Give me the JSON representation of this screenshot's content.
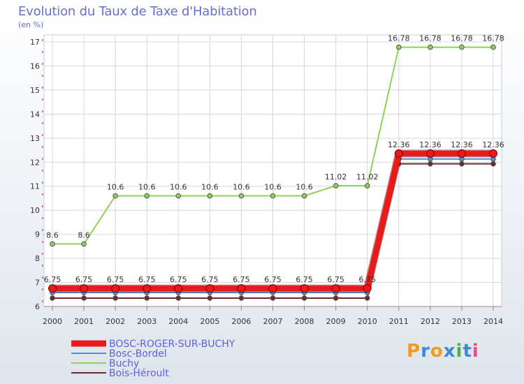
{
  "title": "Evolution du Taux de Taxe d'Habitation",
  "subtitle": "(en %)",
  "logo_text": "Proxiti",
  "chart_data": {
    "type": "line",
    "title": "Evolution du Taux de Taxe d'Habitation",
    "ylabel": "(en %)",
    "x": [
      "2000",
      "2001",
      "2002",
      "2003",
      "2004",
      "2005",
      "2006",
      "2007",
      "2008",
      "2009",
      "2010",
      "2011",
      "2012",
      "2013",
      "2014"
    ],
    "ylim": [
      6,
      17
    ],
    "yticks": [
      6,
      7,
      8,
      9,
      10,
      11,
      12,
      13,
      14,
      15,
      16,
      17
    ],
    "grid": true,
    "legend_position": "bottom-left",
    "series": [
      {
        "name": "Bois-Héroult",
        "color": "#6b2a2a",
        "values": [
          6.35,
          6.35,
          6.35,
          6.35,
          6.35,
          6.35,
          6.35,
          6.35,
          6.35,
          6.35,
          6.35,
          11.93,
          11.93,
          11.93,
          11.93
        ]
      },
      {
        "name": "Bosc-Bordel",
        "color": "#4f8fd6",
        "values": [
          6.58,
          6.58,
          6.58,
          6.58,
          6.58,
          6.58,
          6.58,
          6.58,
          6.58,
          6.58,
          6.58,
          12.13,
          12.13,
          12.13,
          12.13
        ]
      },
      {
        "name": "Buchy",
        "color": "#8fd05a",
        "values": [
          8.6,
          8.6,
          10.6,
          10.6,
          10.6,
          10.6,
          10.6,
          10.6,
          10.6,
          11.02,
          11.02,
          16.78,
          16.78,
          16.78,
          16.78
        ],
        "labels": [
          "8.6",
          "8.6",
          "10.6",
          "10.6",
          "10.6",
          "10.6",
          "10.6",
          "10.6",
          "10.6",
          "11.02",
          "11.02",
          "16.78",
          "16.78",
          "16.78",
          "16.78"
        ]
      },
      {
        "name": "BOSC-ROGER-SUR-BUCHY",
        "color": "#e81a1a",
        "bold": true,
        "values": [
          6.75,
          6.75,
          6.75,
          6.75,
          6.75,
          6.75,
          6.75,
          6.75,
          6.75,
          6.75,
          6.75,
          12.36,
          12.36,
          12.36,
          12.36
        ],
        "labels": [
          "6.75",
          "6.75",
          "6.75",
          "6.75",
          "6.75",
          "6.75",
          "6.75",
          "6.75",
          "6.75",
          "6.75",
          "6.75",
          "12.36",
          "12.36",
          "12.36",
          "12.36"
        ]
      }
    ],
    "legend": [
      "BOSC-ROGER-SUR-BUCHY",
      "Bosc-Bordel",
      "Buchy",
      "Bois-Héroult"
    ]
  }
}
